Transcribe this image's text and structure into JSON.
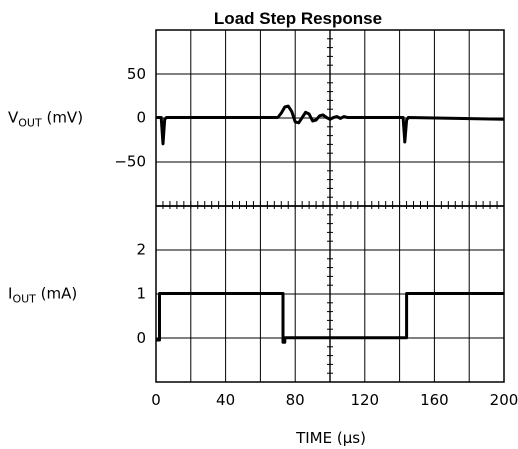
{
  "chart_data": {
    "type": "line",
    "title": "Load Step Response",
    "xlabel": "TIME (μs)",
    "x_ticks": [
      0,
      40,
      80,
      120,
      160,
      200
    ],
    "xlim": [
      0,
      200
    ],
    "grid": true,
    "panels": [
      {
        "id": "vout",
        "ylabel": {
          "main": "V",
          "sub": "OUT",
          "unit": "(mV)"
        },
        "y_ticks": [
          50,
          0,
          -50
        ],
        "ylim": [
          -100,
          100
        ],
        "series": [
          {
            "points": [
              [
                0,
                0
              ],
              [
                3,
                0
              ],
              [
                4,
                -30
              ],
              [
                5,
                -2
              ],
              [
                6,
                0
              ],
              [
                70,
                0
              ],
              [
                72,
                5
              ],
              [
                74,
                12
              ],
              [
                76,
                13
              ],
              [
                78,
                7
              ],
              [
                80,
                -5
              ],
              [
                82,
                -6
              ],
              [
                84,
                0
              ],
              [
                86,
                6
              ],
              [
                88,
                4
              ],
              [
                90,
                -4
              ],
              [
                92,
                -3
              ],
              [
                94,
                2
              ],
              [
                96,
                3
              ],
              [
                98,
                0
              ],
              [
                100,
                -2
              ],
              [
                102,
                0
              ],
              [
                104,
                1
              ],
              [
                106,
                -1
              ],
              [
                108,
                1
              ],
              [
                110,
                0
              ],
              [
                112,
                0
              ],
              [
                142,
                0
              ],
              [
                143,
                -28
              ],
              [
                144,
                -3
              ],
              [
                145,
                0
              ],
              [
                200,
                -2
              ]
            ]
          }
        ]
      },
      {
        "id": "iout",
        "ylabel": {
          "main": "I",
          "sub": "OUT",
          "unit": "(mA)"
        },
        "y_ticks": [
          2,
          1,
          0
        ],
        "ylim": [
          -1,
          3
        ],
        "series": [
          {
            "points": [
              [
                0,
                -0.05
              ],
              [
                2,
                -0.05
              ],
              [
                2,
                1
              ],
              [
                73,
                1
              ],
              [
                73,
                -0.1
              ],
              [
                74,
                -0.1
              ],
              [
                74,
                0
              ],
              [
                144,
                0
              ],
              [
                144,
                1
              ],
              [
                200,
                1
              ]
            ]
          }
        ]
      }
    ]
  }
}
